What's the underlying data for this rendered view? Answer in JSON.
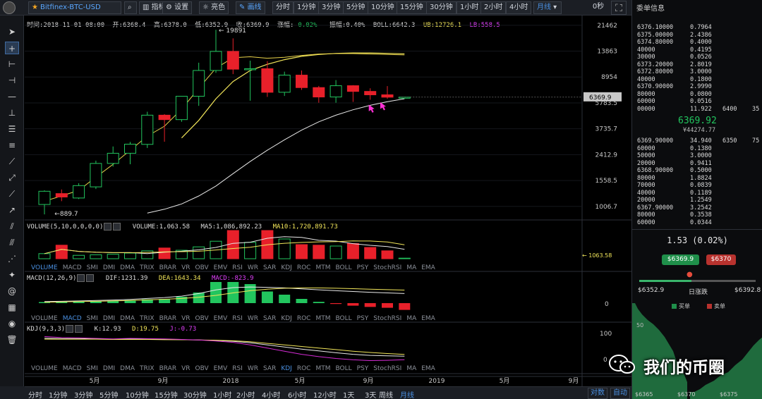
{
  "toolbar": {
    "symbol": "Bitfinex-BTC-USD",
    "indicators_label": "指标",
    "settings_label": "设置",
    "theme_label": "亮色",
    "draw_label": "画线",
    "intervals": [
      "分时",
      "1分钟",
      "3分钟",
      "5分钟",
      "10分钟",
      "15分钟",
      "30分钟",
      "1小时",
      "2小时",
      "4小时"
    ],
    "selected_interval": "月线",
    "timer": "0秒"
  },
  "info": {
    "time": "时间:2018-11-01 08:00",
    "open": "开:6368.4",
    "high": "高:6378.0",
    "low": "低:6352.9",
    "close": "收:6369.9",
    "change_label": "涨幅:",
    "change_value": "0.02%",
    "amplitude": "振幅:0.40%",
    "boll": "BOLL:6642.3",
    "ub": "UB:12726.1",
    "lb": "LB:558.5"
  },
  "chart_data": [
    {
      "type": "candlestick",
      "name": "main",
      "price_axis_labels": [
        "21462",
        "13863",
        "8954",
        "5783.5",
        "3735.7",
        "2412.9",
        "1558.5",
        "1006.7"
      ],
      "current_price_label": "6369.9",
      "annotation_high": "19891",
      "annotation_low": "889.7",
      "time_axis_labels": [
        "5月",
        "9月",
        "2018",
        "5月",
        "9月",
        "2019",
        "5月",
        "9月"
      ],
      "candles": [
        {
          "o": 1040,
          "c": 1300,
          "h": 1320,
          "l": 880
        },
        {
          "o": 1250,
          "c": 1180,
          "h": 1340,
          "l": 1100
        },
        {
          "o": 1160,
          "c": 1430,
          "h": 1490,
          "l": 1140
        },
        {
          "o": 1400,
          "c": 2080,
          "h": 2180,
          "l": 1350
        },
        {
          "o": 2080,
          "c": 2470,
          "h": 2770,
          "l": 1970
        },
        {
          "o": 2470,
          "c": 2880,
          "h": 2990,
          "l": 2050
        },
        {
          "o": 2870,
          "c": 4700,
          "h": 4980,
          "l": 2700
        },
        {
          "o": 4700,
          "c": 4360,
          "h": 4780,
          "l": 3000
        },
        {
          "o": 4360,
          "c": 6470,
          "h": 6500,
          "l": 4200
        },
        {
          "o": 6470,
          "c": 10000,
          "h": 11400,
          "l": 5500
        },
        {
          "o": 10000,
          "c": 13800,
          "h": 19891,
          "l": 9600
        },
        {
          "o": 13800,
          "c": 10220,
          "h": 17200,
          "l": 9400
        },
        {
          "o": 10220,
          "c": 10300,
          "h": 11800,
          "l": 6000
        },
        {
          "o": 10300,
          "c": 6920,
          "h": 11700,
          "l": 6400
        },
        {
          "o": 6920,
          "c": 9240,
          "h": 9800,
          "l": 6500
        },
        {
          "o": 9240,
          "c": 7490,
          "h": 10000,
          "l": 7200
        },
        {
          "o": 7490,
          "c": 6390,
          "h": 7700,
          "l": 5800
        },
        {
          "o": 6390,
          "c": 7730,
          "h": 8500,
          "l": 5800
        },
        {
          "o": 7730,
          "c": 7020,
          "h": 7800,
          "l": 5880
        },
        {
          "o": 7020,
          "c": 6630,
          "h": 7400,
          "l": 6100
        },
        {
          "o": 6630,
          "c": 6370,
          "h": 7680,
          "l": 6200
        },
        {
          "o": 6368.4,
          "c": 6369.9,
          "h": 6378,
          "l": 6352.9
        }
      ],
      "ma_upper": [
        null,
        null,
        null,
        null,
        null,
        null,
        null,
        null,
        3000,
        4100,
        6000,
        8200,
        9900,
        11000,
        12000,
        12800,
        13200,
        13400,
        13500,
        13500,
        13400,
        13300
      ],
      "ma_lower": [
        null,
        null,
        null,
        null,
        null,
        null,
        null,
        null,
        null,
        null,
        null,
        null,
        null,
        null,
        null,
        null,
        null,
        null,
        null,
        null,
        null,
        null
      ]
    },
    {
      "type": "bar",
      "name": "volume",
      "header": "VOLUME(5,10,0,0,0,0)",
      "volume_label": "VOLUME:1,063.58",
      "ma5_label": "MA5:1,086,892.23",
      "ma10_label": "MA10:1,720,891.73",
      "last_label": "1063.58",
      "values": [
        0.18,
        0.48,
        0.12,
        0.14,
        0.16,
        0.2,
        0.28,
        0.38,
        0.3,
        0.42,
        0.62,
        1.0,
        0.58,
        1.0,
        0.7,
        0.5,
        0.48,
        0.45,
        0.54,
        0.4,
        0.28,
        0.005
      ],
      "up": [
        true,
        false,
        true,
        true,
        true,
        true,
        true,
        false,
        true,
        true,
        true,
        false,
        true,
        false,
        true,
        false,
        false,
        true,
        false,
        false,
        false,
        true
      ]
    },
    {
      "type": "bar",
      "name": "macd",
      "header": "MACD(12,26,9)",
      "dif_label": "DIF:1231.39",
      "dea_label": "DEA:1643.34",
      "macd_label": "MACD:-823.9",
      "axis_zero": "0",
      "values": [
        0.05,
        0.07,
        0.08,
        0.1,
        0.12,
        0.14,
        0.18,
        0.2,
        0.3,
        0.5,
        1.0,
        1.0,
        0.9,
        0.55,
        0.4,
        0.2,
        0.06,
        -0.04,
        -0.12,
        -0.18,
        -0.22,
        -0.32
      ]
    },
    {
      "type": "line",
      "name": "kdj",
      "header": "KDJ(9,3,3)",
      "k_label": "K:12.93",
      "d_label": "D:19.75",
      "j_label": "J:-0.73",
      "axis_labels": [
        "100",
        "0"
      ]
    }
  ],
  "indicator_tabs": [
    "VOLUME",
    "MACD",
    "SMI",
    "DMI",
    "DMA",
    "TRIX",
    "BRAR",
    "VR",
    "OBV",
    "EMV",
    "RSI",
    "WR",
    "SAR",
    "KDJ",
    "ROC",
    "MTM",
    "BOLL",
    "PSY",
    "StochRSI",
    "MA",
    "EMA"
  ],
  "periods": [
    "分时",
    "1分钟",
    "3分钟",
    "5分钟",
    "10分钟",
    "15分钟",
    "30分钟",
    "1小时",
    "2小时",
    "4小时",
    "6小时",
    "12小时",
    "1天",
    "3天",
    "周线",
    "月线"
  ],
  "selected_period": "月线",
  "bottom_right": {
    "log_label": "对数",
    "auto_label": "自动"
  },
  "orderbook": {
    "title": "委单信息",
    "asks": [
      {
        "p": "6376.1",
        "q": "0000",
        "v": "0.7964"
      },
      {
        "p": "6375.0",
        "q": "0000",
        "v": "2.4386"
      },
      {
        "p": "6374.8",
        "q": "0000",
        "v": "0.4000"
      },
      {
        "p": "4",
        "q": "0000",
        "v": "0.4195"
      },
      {
        "p": "3",
        "q": "0000",
        "v": "0.0526"
      },
      {
        "p": "6373.2",
        "q": "0000",
        "v": "2.8019"
      },
      {
        "p": "6372.8",
        "q": "0000",
        "v": "3.0000"
      },
      {
        "p": "4",
        "q": "0000",
        "v": "0.1800"
      },
      {
        "p": "6370.9",
        "q": "0000",
        "v": "2.9990"
      },
      {
        "p": "8",
        "q": "0000",
        "v": "0.0800"
      },
      {
        "p": "6",
        "q": "0000",
        "v": "0.0516"
      },
      {
        "p": "0",
        "q": "0000",
        "v": "11.922",
        "x1": "6400",
        "x2": "35"
      }
    ],
    "last_price": "6369.92",
    "last_sub": "¥44274.77",
    "bids": [
      {
        "p": "6369.9",
        "q": "0000",
        "v": "34.940",
        "x1": "6350",
        "x2": "75"
      },
      {
        "p": "6",
        "q": "0000",
        "v": "0.1380"
      },
      {
        "p": "5",
        "q": "0000",
        "v": "3.0000"
      },
      {
        "p": "2",
        "q": "0000",
        "v": "0.9411"
      },
      {
        "p": "6368.9",
        "q": "0000",
        "v": "0.5000"
      },
      {
        "p": "8",
        "q": "0000",
        "v": "1.8824"
      },
      {
        "p": "7",
        "q": "0000",
        "v": "0.0839"
      },
      {
        "p": "4",
        "q": "0000",
        "v": "0.1189"
      },
      {
        "p": "2",
        "q": "0000",
        "v": "1.2549"
      },
      {
        "p": "6367.9",
        "q": "0000",
        "v": "3.2542"
      },
      {
        "p": "8",
        "q": "0000",
        "v": "0.3538"
      },
      {
        "p": "6",
        "q": "0000",
        "v": "0.0344"
      }
    ],
    "change": "1.53 (0.02%)",
    "buy_price": "$6369.9",
    "sell_price": "$6370",
    "range_low": "$6352.9",
    "range_label": "日涨跌",
    "range_high": "$6392.8",
    "range_position": 0.45,
    "depth_legend_buy": "买单",
    "depth_legend_sell": "卖单",
    "depth_axis_y": "50",
    "depth_axis_x": [
      "$6365",
      "$6370",
      "$6375"
    ]
  },
  "watermark": "我们的币圈",
  "colors": {
    "up": "#22c55e",
    "down": "#e8202a",
    "ma_yellow": "#f2e65a",
    "ma_white": "#e0e0e0",
    "accent": "#4a90e2"
  }
}
